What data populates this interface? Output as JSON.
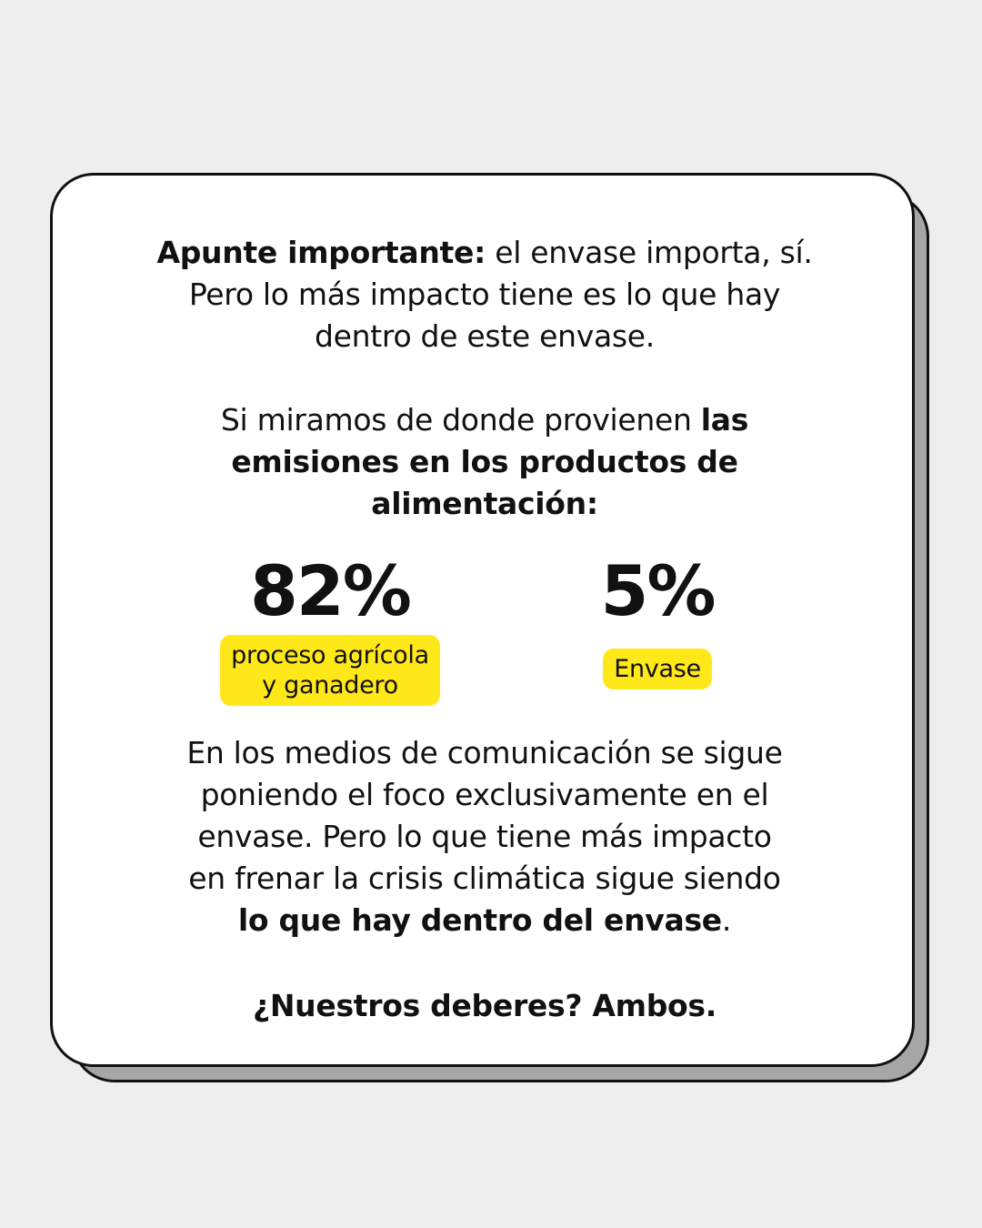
{
  "intro": {
    "bold": "Apunte importante:",
    "text_1": " el envase importa, sí.",
    "line_2": "Pero lo más impacto tiene es lo que hay",
    "line_3": "dentro de este envase."
  },
  "emissions": {
    "text": "Si miramos de donde provienen ",
    "bold_1": "las",
    "bold_2": "emisiones en los productos de",
    "bold_3": "alimentación:"
  },
  "stats": [
    {
      "value": "82%",
      "label_line_1": "proceso agrícola",
      "label_line_2": "y ganadero"
    },
    {
      "value": "5%",
      "label_line_1": "Envase"
    }
  ],
  "media": {
    "line_1": "En los medios de comunicación se sigue",
    "line_2": "poniendo el foco exclusivamente en el",
    "line_3": "envase. Pero lo que tiene más impacto",
    "line_4": "en frenar la crisis climática sigue siendo",
    "bold": "lo que hay dentro del envase",
    "end": "."
  },
  "closing": "¿Nuestros deberes? Ambos.",
  "colors": {
    "background": "#eeeeee",
    "card": "#ffffff",
    "card_shadow": "#a6a6a6",
    "highlight": "#ffe81a",
    "text": "#111111"
  }
}
